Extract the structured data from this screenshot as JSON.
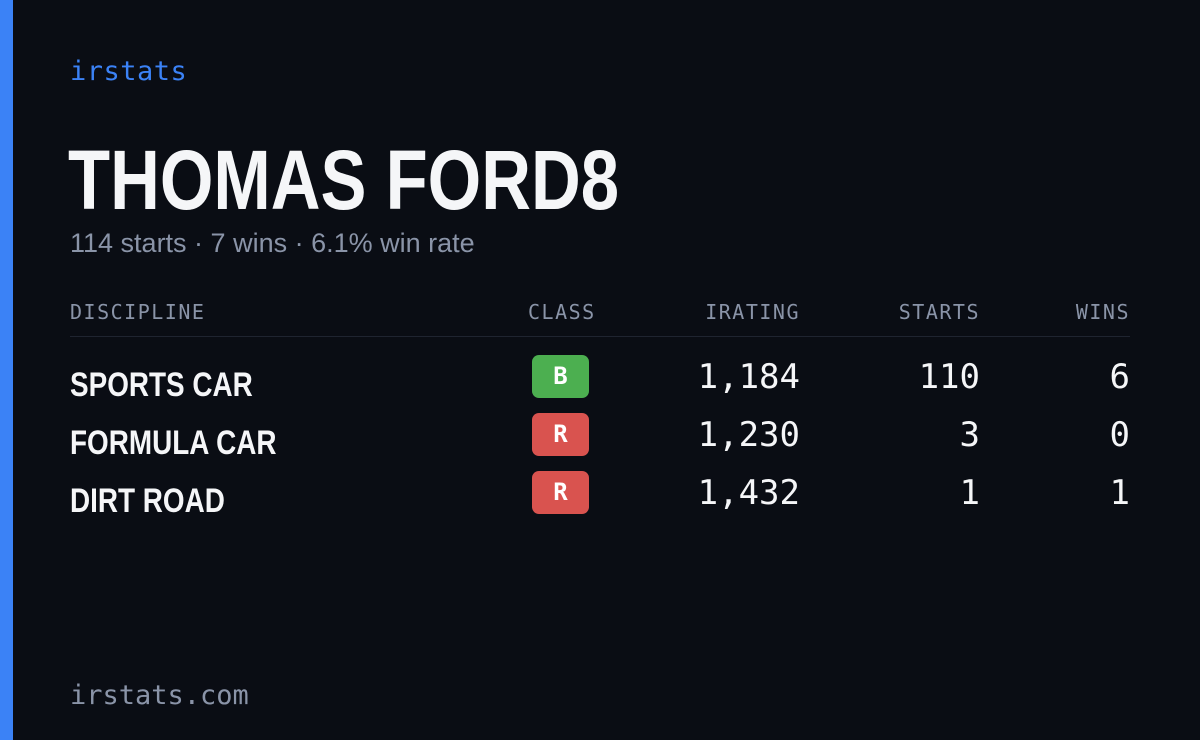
{
  "brand": "irstats",
  "driver": {
    "name": "THOMAS FORD8",
    "summary": "114 starts · 7 wins · 6.1% win rate"
  },
  "table": {
    "headers": {
      "discipline": "DISCIPLINE",
      "class": "CLASS",
      "irating": "IRATING",
      "starts": "STARTS",
      "wins": "WINS"
    },
    "rows": [
      {
        "discipline": "SPORTS CAR",
        "class": "B",
        "class_color": "#4caf50",
        "irating": "1,184",
        "starts": "110",
        "wins": "6"
      },
      {
        "discipline": "FORMULA CAR",
        "class": "R",
        "class_color": "#d9534f",
        "irating": "1,230",
        "starts": "3",
        "wins": "0"
      },
      {
        "discipline": "DIRT ROAD",
        "class": "R",
        "class_color": "#d9534f",
        "irating": "1,432",
        "starts": "1",
        "wins": "1"
      }
    ]
  },
  "footer": "irstats.com",
  "colors": {
    "accent": "#3b82f6",
    "background": "#0a0d14",
    "muted": "#8a94a8",
    "text": "#f5f6f8"
  }
}
